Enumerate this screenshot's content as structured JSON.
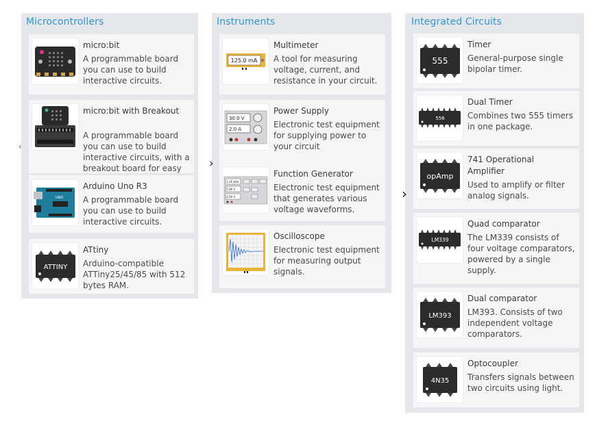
{
  "panels": [
    {
      "title": "Microcontrollers",
      "items": [
        {
          "title": "micro:bit",
          "desc": "A programmable board you can use to build interactive circuits.",
          "icon": "microbit-board-icon"
        },
        {
          "title": "micro:bit with Breakout",
          "desc": "A programmable board you can use to build interactive circuits, with a breakout board for easy",
          "icon": "microbit-breakout-icon"
        },
        {
          "title": "Arduino Uno R3",
          "desc": "A programmable board you can use to build interactive circuits.",
          "icon": "arduino-uno-icon"
        },
        {
          "title": "ATtiny",
          "desc": "Arduino-compatible ATTiny25/45/85 with 512 bytes RAM.",
          "icon": "attiny-chip-icon",
          "chip_label": "ATTINY"
        }
      ]
    },
    {
      "title": "Instruments",
      "items": [
        {
          "title": "Multimeter",
          "desc": "A tool for measuring voltage, current, and resistance in your circuit.",
          "icon": "multimeter-icon",
          "display": "125.0 mA"
        },
        {
          "title": "Power Supply",
          "desc": "Electronic test equipment for supplying power to your circuit",
          "icon": "power-supply-icon",
          "display_v": "30.0 V",
          "display_a": "2.0 A"
        },
        {
          "title": "Function Generator",
          "desc": "Electronic test equipment that generates various voltage waveforms.",
          "icon": "function-generator-icon",
          "display_f": "1.26 kHz",
          "display_a": "5.00 V",
          "display_o": "2.50 V"
        },
        {
          "title": "Oscilloscope",
          "desc": "Electronic test equipment for measuring output signals.",
          "icon": "oscilloscope-icon"
        }
      ]
    },
    {
      "title": "Integrated Circuits",
      "items": [
        {
          "title": "Timer",
          "desc": "General-purpose single bipolar timer.",
          "icon": "timer-555-chip-icon",
          "chip_label": "555"
        },
        {
          "title": "Dual Timer",
          "desc": "Combines two 555 timers in one package.",
          "icon": "dual-timer-556-chip-icon",
          "chip_label": "556"
        },
        {
          "title": "741 Operational Amplifier",
          "desc": "Used to amplify or filter analog signals.",
          "icon": "opamp-chip-icon",
          "chip_label": "opAmp"
        },
        {
          "title": "Quad comparator",
          "desc": "The LM339 consists of four voltage comparators, powered by a single supply.",
          "icon": "lm339-chip-icon",
          "chip_label": "LM339"
        },
        {
          "title": "Dual comparator",
          "desc": "LM393. Consists of two independent voltage comparators.",
          "icon": "lm393-chip-icon",
          "chip_label": "LM393"
        },
        {
          "title": "Optocoupler",
          "desc": "Transfers signals between two circuits using light.",
          "icon": "optocoupler-chip-icon",
          "chip_label": "4N35"
        }
      ]
    }
  ],
  "colors": {
    "accent": "#2f97d3",
    "panel_bg": "#e6e7ea",
    "card_bg": "#f6f6f7",
    "chip": "#2b2b2b",
    "arduino": "#1f7d9c",
    "microbit": "#222222"
  }
}
